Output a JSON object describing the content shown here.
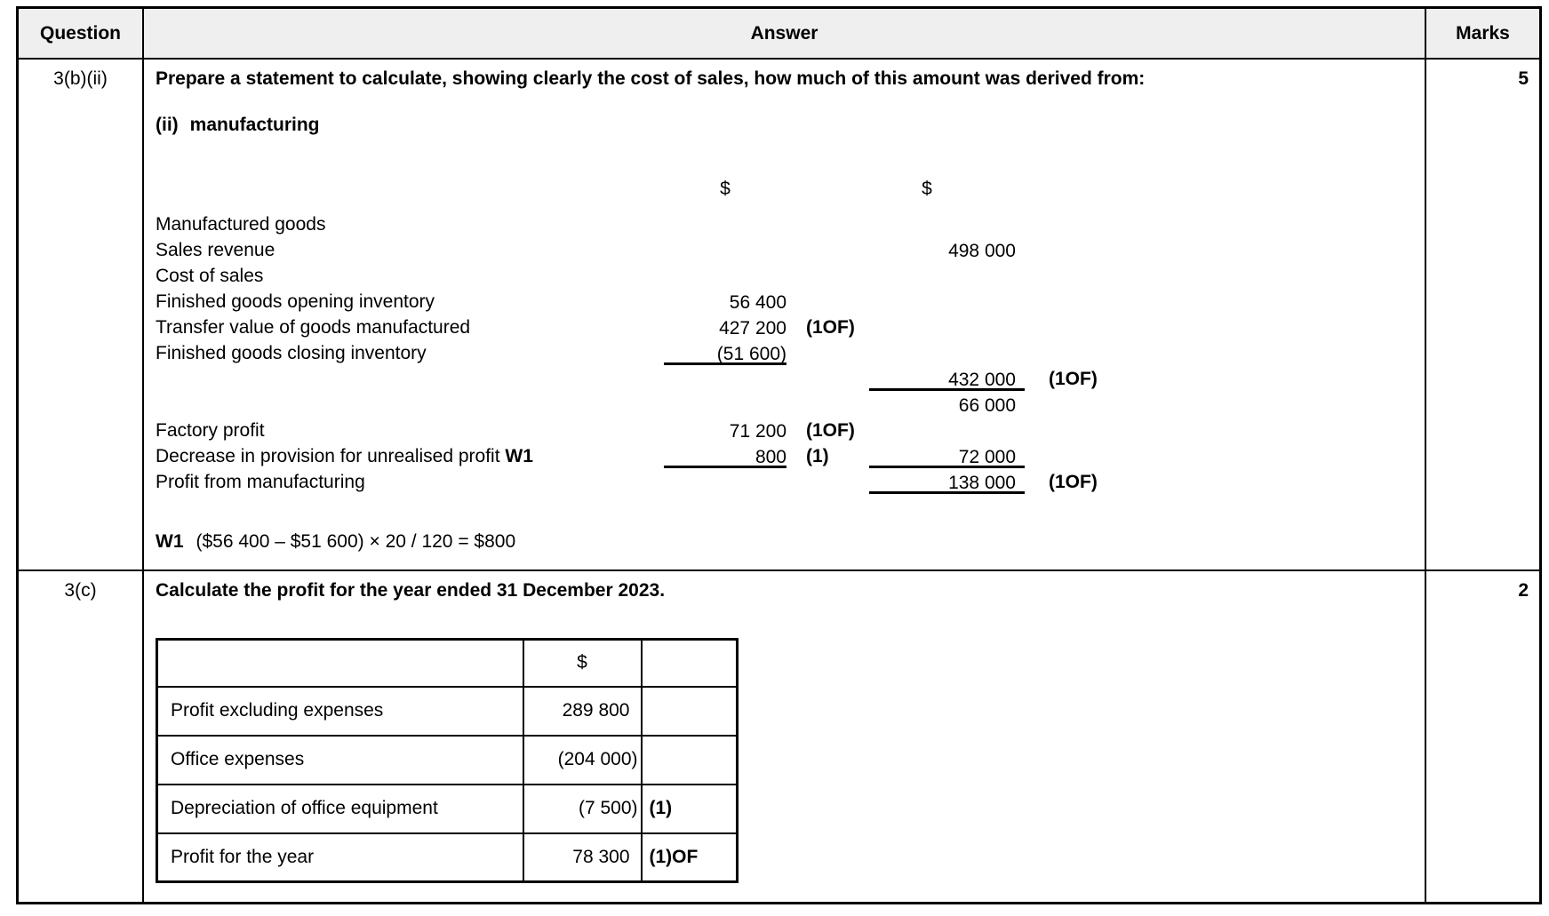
{
  "header": {
    "question": "Question",
    "answer": "Answer",
    "marks": "Marks"
  },
  "rows": [
    {
      "id": "3(b)(ii)",
      "marks": "5",
      "prompt": "Prepare a statement to calculate, showing clearly the cost of sales, how much of this amount was derived from:",
      "subprompt_num": "(ii)",
      "subprompt_text": "manufacturing",
      "statement": {
        "col1_currency": "$",
        "col2_currency": "$",
        "lines": [
          {
            "label": "Manufactured goods"
          },
          {
            "label": "Sales revenue",
            "n2": "498 000"
          },
          {
            "label": "Cost of sales"
          },
          {
            "label": "Finished goods opening inventory",
            "n1": "56 400"
          },
          {
            "label": "Transfer value of goods manufactured",
            "n1": "427 200",
            "m1": "(1OF)"
          },
          {
            "label": "Finished goods closing inventory",
            "n1": "(51 600)",
            "u1": true
          },
          {
            "n2": "432 000",
            "u2": true,
            "m2": "(1OF)"
          },
          {
            "n2": "66 000"
          },
          {
            "label": "Factory profit",
            "n1": "71 200",
            "m1": "(1OF)"
          },
          {
            "label": "Decrease in provision for unrealised profit",
            "label_suffix": "W1",
            "n1": "800",
            "u1": true,
            "m1": "(1)",
            "n2": "72 000",
            "u2": true
          },
          {
            "label": "Profit from manufacturing",
            "n2": "138 000",
            "u2": true,
            "m2": "(1OF)"
          }
        ]
      },
      "working": {
        "label": "W1",
        "formula": "($56 400 – $51 600) × 20 / 120 = $800"
      }
    },
    {
      "id": "3(c)",
      "marks": "2",
      "prompt": "Calculate the profit for the year ended 31 December 2023.",
      "table": {
        "header": [
          "",
          "$",
          ""
        ],
        "rows": [
          {
            "label": "Profit excluding expenses",
            "amount": "289 800",
            "mark": ""
          },
          {
            "label": "Office expenses",
            "amount": "(204 000)",
            "mark": ""
          },
          {
            "label": "Depreciation of office equipment",
            "amount": "(7 500)",
            "mark": "(1)"
          },
          {
            "label": "Profit for the year",
            "amount": "78 300",
            "mark": "(1)OF"
          }
        ]
      }
    }
  ]
}
